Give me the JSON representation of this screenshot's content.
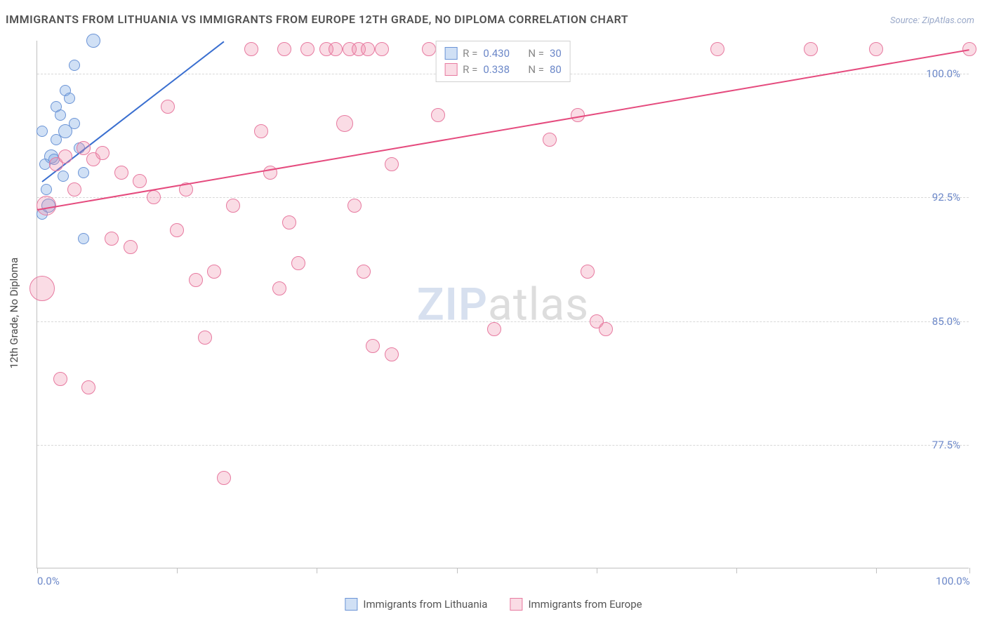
{
  "title": "IMMIGRANTS FROM LITHUANIA VS IMMIGRANTS FROM EUROPE 12TH GRADE, NO DIPLOMA CORRELATION CHART",
  "source": "Source: ZipAtlas.com",
  "ylabel": "12th Grade, No Diploma",
  "watermark": {
    "part1": "ZIP",
    "part2": "atlas"
  },
  "chart": {
    "type": "scatter",
    "xlim": [
      0,
      100
    ],
    "ylim": [
      70,
      102
    ],
    "xtick_positions": [
      0,
      15,
      30,
      45,
      60,
      75,
      90,
      100
    ],
    "xtick_labels": {
      "0": "0.0%",
      "100": "100.0%"
    },
    "ytick_positions": [
      77.5,
      85.0,
      92.5,
      100.0
    ],
    "ytick_labels": [
      "77.5%",
      "85.0%",
      "92.5%",
      "100.0%"
    ],
    "background_color": "#ffffff",
    "grid_color": "#d8d8d8",
    "axis_color": "#c0c0c0",
    "series": [
      {
        "name": "Immigrants from Lithuania",
        "color_fill": "rgba(120, 165, 225, 0.35)",
        "color_stroke": "#6b94d6",
        "trend_color": "#3a6fd0",
        "trend": {
          "x1": 0.5,
          "y1": 93.5,
          "x2": 20,
          "y2": 102
        },
        "stats": {
          "R": "0.430",
          "N": "30"
        },
        "points": [
          {
            "x": 0.5,
            "y": 91.5,
            "r": 8
          },
          {
            "x": 1.0,
            "y": 93.0,
            "r": 8
          },
          {
            "x": 1.5,
            "y": 95.0,
            "r": 10
          },
          {
            "x": 2.0,
            "y": 96.0,
            "r": 8
          },
          {
            "x": 2.0,
            "y": 98.0,
            "r": 8
          },
          {
            "x": 2.5,
            "y": 97.5,
            "r": 8
          },
          {
            "x": 3.0,
            "y": 96.5,
            "r": 10
          },
          {
            "x": 3.0,
            "y": 99.0,
            "r": 8
          },
          {
            "x": 3.5,
            "y": 98.5,
            "r": 8
          },
          {
            "x": 4.0,
            "y": 97.0,
            "r": 8
          },
          {
            "x": 4.0,
            "y": 100.5,
            "r": 8
          },
          {
            "x": 4.5,
            "y": 95.5,
            "r": 8
          },
          {
            "x": 5.0,
            "y": 90.0,
            "r": 8
          },
          {
            "x": 5.0,
            "y": 94.0,
            "r": 8
          },
          {
            "x": 0.8,
            "y": 94.5,
            "r": 8
          },
          {
            "x": 1.2,
            "y": 92.0,
            "r": 10
          },
          {
            "x": 6.0,
            "y": 102.0,
            "r": 10
          },
          {
            "x": 1.8,
            "y": 94.8,
            "r": 8
          },
          {
            "x": 2.8,
            "y": 93.8,
            "r": 8
          },
          {
            "x": 0.5,
            "y": 96.5,
            "r": 8
          }
        ]
      },
      {
        "name": "Immigrants from Europe",
        "color_fill": "rgba(240, 140, 170, 0.30)",
        "color_stroke": "#e77aa0",
        "trend_color": "#e54b7e",
        "trend": {
          "x1": 0,
          "y1": 91.8,
          "x2": 100,
          "y2": 101.5
        },
        "stats": {
          "R": "0.338",
          "N": "80"
        },
        "points": [
          {
            "x": 0.5,
            "y": 87.0,
            "r": 18
          },
          {
            "x": 1.0,
            "y": 92.0,
            "r": 14
          },
          {
            "x": 2.0,
            "y": 94.5,
            "r": 10
          },
          {
            "x": 3.0,
            "y": 95.0,
            "r": 10
          },
          {
            "x": 4.0,
            "y": 93.0,
            "r": 10
          },
          {
            "x": 5.0,
            "y": 95.5,
            "r": 10
          },
          {
            "x": 6.0,
            "y": 94.8,
            "r": 10
          },
          {
            "x": 7.0,
            "y": 95.2,
            "r": 10
          },
          {
            "x": 8.0,
            "y": 90.0,
            "r": 10
          },
          {
            "x": 9.0,
            "y": 94.0,
            "r": 10
          },
          {
            "x": 10.0,
            "y": 89.5,
            "r": 10
          },
          {
            "x": 11.0,
            "y": 93.5,
            "r": 10
          },
          {
            "x": 12.5,
            "y": 92.5,
            "r": 10
          },
          {
            "x": 14.0,
            "y": 98.0,
            "r": 10
          },
          {
            "x": 15.0,
            "y": 90.5,
            "r": 10
          },
          {
            "x": 16.0,
            "y": 93.0,
            "r": 10
          },
          {
            "x": 17.0,
            "y": 87.5,
            "r": 10
          },
          {
            "x": 18.0,
            "y": 84.0,
            "r": 10
          },
          {
            "x": 19.0,
            "y": 88.0,
            "r": 10
          },
          {
            "x": 20.0,
            "y": 75.5,
            "r": 10
          },
          {
            "x": 21.0,
            "y": 92.0,
            "r": 10
          },
          {
            "x": 23.0,
            "y": 101.5,
            "r": 10
          },
          {
            "x": 24.0,
            "y": 96.5,
            "r": 10
          },
          {
            "x": 25.0,
            "y": 94.0,
            "r": 10
          },
          {
            "x": 26.0,
            "y": 87.0,
            "r": 10
          },
          {
            "x": 26.5,
            "y": 101.5,
            "r": 10
          },
          {
            "x": 27.0,
            "y": 91.0,
            "r": 10
          },
          {
            "x": 28.0,
            "y": 88.5,
            "r": 10
          },
          {
            "x": 29.0,
            "y": 101.5,
            "r": 10
          },
          {
            "x": 31.0,
            "y": 101.5,
            "r": 10
          },
          {
            "x": 32.0,
            "y": 101.5,
            "r": 10
          },
          {
            "x": 33.0,
            "y": 97.0,
            "r": 12
          },
          {
            "x": 33.5,
            "y": 101.5,
            "r": 10
          },
          {
            "x": 34.0,
            "y": 92.0,
            "r": 10
          },
          {
            "x": 34.5,
            "y": 101.5,
            "r": 10
          },
          {
            "x": 35.0,
            "y": 88.0,
            "r": 10
          },
          {
            "x": 35.5,
            "y": 101.5,
            "r": 10
          },
          {
            "x": 36.0,
            "y": 83.5,
            "r": 10
          },
          {
            "x": 37.0,
            "y": 101.5,
            "r": 10
          },
          {
            "x": 38.0,
            "y": 94.5,
            "r": 10
          },
          {
            "x": 38.0,
            "y": 83.0,
            "r": 10
          },
          {
            "x": 42.0,
            "y": 101.5,
            "r": 10
          },
          {
            "x": 43.0,
            "y": 97.5,
            "r": 10
          },
          {
            "x": 47.0,
            "y": 101.5,
            "r": 10
          },
          {
            "x": 49.0,
            "y": 84.5,
            "r": 10
          },
          {
            "x": 55.0,
            "y": 96.0,
            "r": 10
          },
          {
            "x": 58.0,
            "y": 97.5,
            "r": 10
          },
          {
            "x": 59.0,
            "y": 88.0,
            "r": 10
          },
          {
            "x": 60.0,
            "y": 85.0,
            "r": 10
          },
          {
            "x": 61.0,
            "y": 84.5,
            "r": 10
          },
          {
            "x": 73.0,
            "y": 101.5,
            "r": 10
          },
          {
            "x": 83.0,
            "y": 101.5,
            "r": 10
          },
          {
            "x": 90.0,
            "y": 101.5,
            "r": 10
          },
          {
            "x": 100.0,
            "y": 101.5,
            "r": 10
          },
          {
            "x": 2.5,
            "y": 81.5,
            "r": 10
          },
          {
            "x": 5.5,
            "y": 81.0,
            "r": 10
          }
        ]
      }
    ]
  },
  "legend_top": {
    "R_label": "R =",
    "N_label": "N =",
    "text_color": "#6b87c8",
    "label_color": "#888"
  },
  "legend_bottom_labels": [
    "Immigrants from Lithuania",
    "Immigrants from Europe"
  ]
}
